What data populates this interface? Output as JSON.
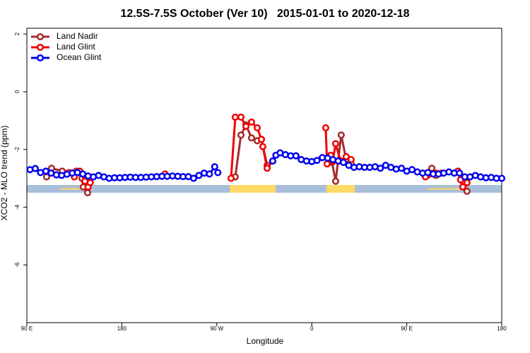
{
  "chart_data": {
    "type": "line",
    "title": "12.5S-7.5S October (Ver 10)   2015-01-01 to 2020-12-18",
    "x_label": "Longitude",
    "y_label": "XCO2 - MLO trend (ppm)",
    "xlim": [
      90,
      540
    ],
    "xticks": [
      {
        "value": 90,
        "label": "90 E"
      },
      180,
      {
        "value": 270,
        "label": "90 W"
      },
      {
        "value": 360,
        "label": "0"
      },
      {
        "value": 450,
        "label": "90 E"
      },
      {
        "value": 540,
        "label": "180"
      }
    ],
    "ylim": [
      -8,
      2.2
    ],
    "yticks": [
      2,
      0,
      -2,
      -4,
      -6
    ],
    "legend": "upper left",
    "series": [
      {
        "name": "Land Nadir",
        "color": "#a52a2a",
        "x": [
          108.7,
          113.4,
          123.5,
          136.9,
          142.2,
          143.5,
          147.6,
          null,
          287.5,
          292.9,
          297.6,
          302.9,
          308.3,
          312.3,
          317.7,
          null,
          379.2,
          382.6,
          387.9,
          392.6,
          397.3,
          null,
          469.7,
          473.7,
          477.7,
          498.5,
          503.1,
          507.1
        ],
        "values": [
          -2.95,
          -2.65,
          -2.75,
          -2.75,
          -3.0,
          -3.3,
          -3.5,
          null,
          -2.95,
          -1.5,
          -1.15,
          -1.6,
          -1.7,
          -1.65,
          -2.55,
          null,
          -2.45,
          -3.1,
          -1.5,
          -2.35,
          -2.5,
          null,
          -2.9,
          -2.65,
          -2.9,
          -2.8,
          -3.1,
          -3.45
        ]
      },
      {
        "name": "Land Glint",
        "color": "#ee0000",
        "x": [
          130,
          135,
          140,
          145,
          148,
          150,
          null,
          221,
          null,
          283.5,
          287.5,
          292.9,
          297.6,
          302.9,
          308.3,
          312.3,
          313.6,
          317.7,
          323,
          null,
          373.2,
          374.5,
          377.9,
          379.9,
          382.6,
          387.3,
          392.6,
          397.3,
          null,
          467.7,
          477.7,
          483,
          498.5,
          501,
          503.1,
          507.1
        ],
        "values": [
          -2.8,
          -2.95,
          -2.75,
          -3.1,
          -3.3,
          -3.15,
          null,
          -2.85,
          null,
          -3.0,
          -0.88,
          -0.88,
          -1.2,
          -1.05,
          -1.25,
          -1.65,
          -1.9,
          -2.65,
          -2.4,
          null,
          -1.25,
          -2.5,
          -2.2,
          -2.4,
          -1.8,
          -2.4,
          -2.25,
          -2.35,
          null,
          -2.95,
          -2.82,
          -2.82,
          -2.75,
          -3.05,
          -3.3,
          -3.15
        ]
      },
      {
        "name": "Ocean Glint",
        "color": "#0000ee",
        "x": [
          93,
          98,
          103,
          108,
          113,
          118,
          123,
          128,
          133,
          138,
          143,
          148,
          153,
          158,
          163,
          168,
          173,
          178,
          183,
          188,
          193,
          198,
          203,
          208,
          213,
          218,
          223,
          228,
          233,
          238,
          243,
          248,
          253,
          258,
          263,
          268,
          271,
          null,
          323,
          326,
          330,
          335,
          340,
          345,
          350,
          355,
          360,
          365,
          370,
          375,
          380,
          385,
          390,
          395,
          400,
          405,
          410,
          415,
          420,
          425,
          430,
          435,
          440,
          445,
          450,
          455,
          460,
          465,
          470,
          475,
          480,
          485,
          490,
          495,
          500,
          505,
          510,
          515,
          520,
          525,
          530,
          535,
          540
        ],
        "values": [
          -2.7,
          -2.66,
          -2.8,
          -2.75,
          -2.82,
          -2.88,
          -2.9,
          -2.86,
          -2.82,
          -2.8,
          -2.85,
          -2.92,
          -2.95,
          -2.9,
          -2.95,
          -3.0,
          -2.98,
          -2.98,
          -2.97,
          -2.96,
          -2.97,
          -2.97,
          -2.96,
          -2.95,
          -2.94,
          -2.93,
          -2.93,
          -2.92,
          -2.93,
          -2.94,
          -2.94,
          -3.0,
          -2.9,
          -2.82,
          -2.85,
          -2.6,
          -2.8,
          null,
          -2.4,
          -2.2,
          -2.12,
          -2.18,
          -2.22,
          -2.22,
          -2.35,
          -2.4,
          -2.42,
          -2.38,
          -2.28,
          -2.3,
          -2.35,
          -2.4,
          -2.45,
          -2.55,
          -2.62,
          -2.6,
          -2.62,
          -2.62,
          -2.6,
          -2.65,
          -2.55,
          -2.62,
          -2.68,
          -2.65,
          -2.75,
          -2.7,
          -2.78,
          -2.82,
          -2.8,
          -2.85,
          -2.85,
          -2.82,
          -2.78,
          -2.82,
          -2.82,
          -2.95,
          -2.95,
          -2.9,
          -2.95,
          -2.98,
          -2.97,
          -3.0,
          -3.0
        ]
      }
    ]
  }
}
